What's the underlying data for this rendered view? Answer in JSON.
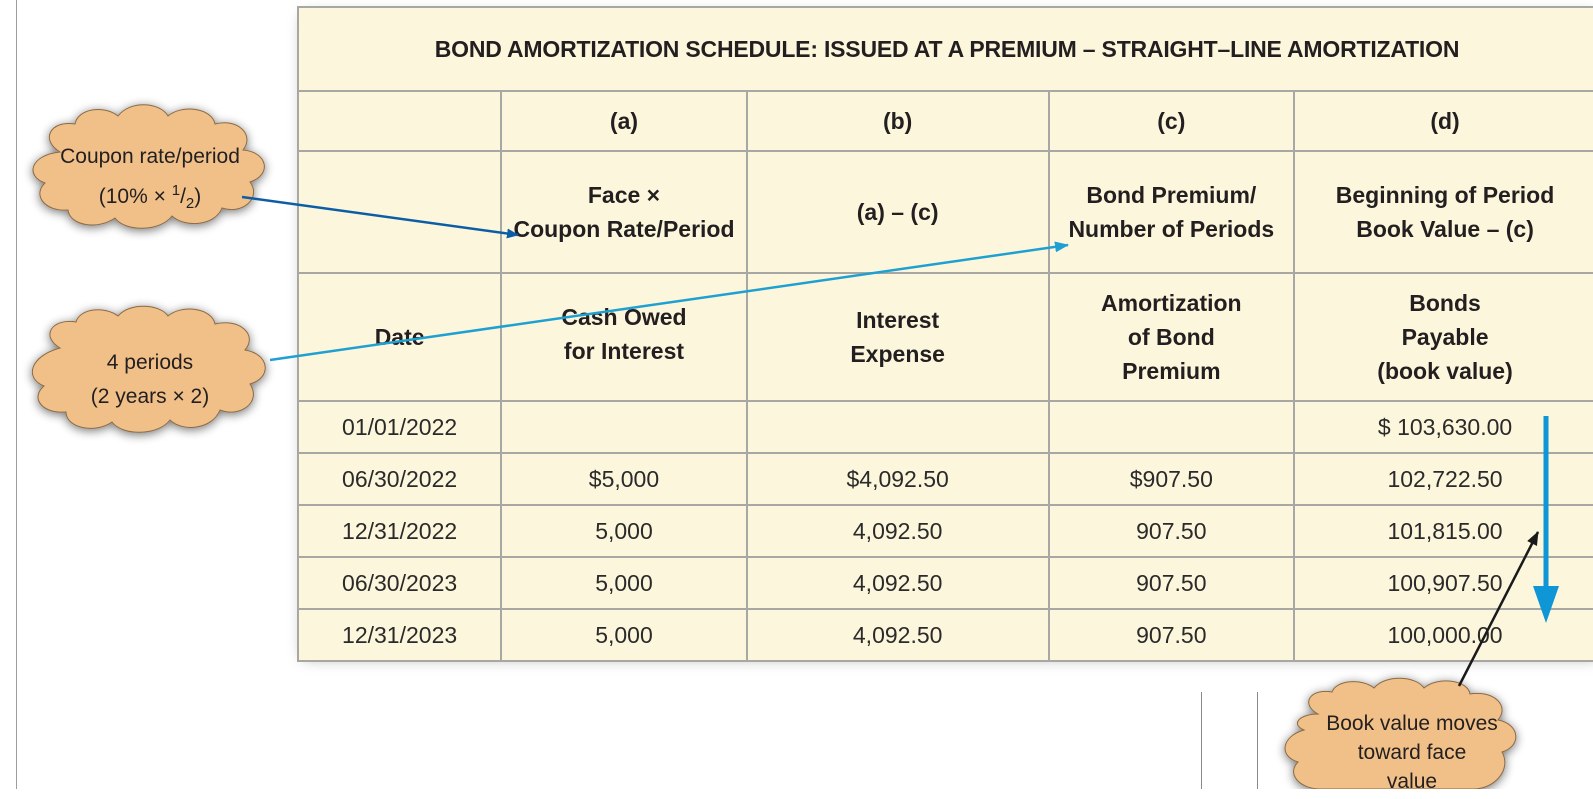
{
  "table": {
    "title": "BOND AMORTIZATION SCHEDULE: ISSUED AT A PREMIUM – STRAIGHT–LINE AMORTIZATION",
    "column_letters": [
      "(a)",
      "(b)",
      "(c)",
      "(d)"
    ],
    "formulas": {
      "a": [
        "Face ×",
        "Coupon Rate/Period"
      ],
      "b": [
        "(a) – (c)"
      ],
      "c": [
        "Bond Premium/",
        "Number of Periods"
      ],
      "d": [
        "Beginning of Period",
        "Book Value – (c)"
      ]
    },
    "headers": {
      "date": "Date",
      "a": [
        "Cash Owed",
        "for Interest"
      ],
      "b": [
        "Interest",
        "Expense"
      ],
      "c": [
        "Amortization",
        "of Bond",
        "Premium"
      ],
      "d": [
        "Bonds",
        "Payable",
        "(book value)"
      ]
    },
    "rows": [
      {
        "date": "01/01/2022",
        "cash": "",
        "interest": "",
        "amortization": "",
        "book_value": "$ 103,630.00"
      },
      {
        "date": "06/30/2022",
        "cash": "$5,000",
        "interest": "$4,092.50",
        "amortization": "$907.50",
        "book_value": "102,722.50"
      },
      {
        "date": "12/31/2022",
        "cash": "5,000",
        "interest": "4,092.50",
        "amortization": "907.50",
        "book_value": "101,815.00"
      },
      {
        "date": "06/30/2023",
        "cash": "5,000",
        "interest": "4,092.50",
        "amortization": "907.50",
        "book_value": "100,907.50"
      },
      {
        "date": "12/31/2023",
        "cash": "5,000",
        "interest": "4,092.50",
        "amortization": "907.50",
        "book_value": "100,000.00"
      }
    ]
  },
  "callouts": {
    "coupon": {
      "line1": "Coupon rate/period",
      "line2_prefix": "(10% × ",
      "line2_num": "1",
      "line2_slash": "/",
      "line2_den": "2",
      "line2_suffix": ")"
    },
    "periods": {
      "line1": "4 periods",
      "line2": "(2 years × 2)"
    },
    "book_value": {
      "line1": "Book value moves",
      "line2": "toward face",
      "line3": "value"
    }
  },
  "colors": {
    "table_bg": "#fcf7dc",
    "grid": "#a7a7a4",
    "cloud_fill": "#f0c088",
    "arrow_dark_blue": "#0d5da6",
    "arrow_light_blue": "#1ea0d2",
    "arrow_vertical_blue": "#0f96d6"
  },
  "icons": [
    "cloud-callout",
    "arrow"
  ]
}
